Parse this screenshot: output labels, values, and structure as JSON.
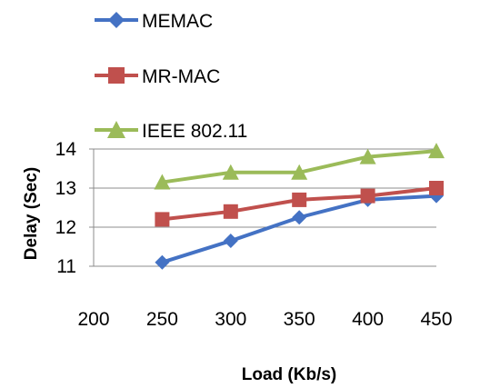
{
  "chart_data": {
    "type": "line",
    "xlabel": "Load (Kb/s)",
    "ylabel": "Delay (Sec)",
    "x_ticks": [
      200,
      250,
      300,
      350,
      400,
      450
    ],
    "y_ticks": [
      11,
      12,
      13,
      14
    ],
    "xlim": [
      200,
      450
    ],
    "ylim": [
      11,
      14
    ],
    "grid": true,
    "legend_position": "top-left",
    "series": [
      {
        "name": "MEMAC",
        "color": "#4472C4",
        "marker": "diamond",
        "x": [
          250,
          300,
          350,
          400,
          450
        ],
        "y": [
          11.1,
          11.65,
          12.25,
          12.7,
          12.8
        ]
      },
      {
        "name": "MR-MAC",
        "color": "#C0504D",
        "marker": "square",
        "x": [
          250,
          300,
          350,
          400,
          450
        ],
        "y": [
          12.2,
          12.4,
          12.7,
          12.8,
          13.0
        ]
      },
      {
        "name": "IEEE 802.11",
        "color": "#9BBB59",
        "marker": "triangle",
        "x": [
          250,
          300,
          350,
          400,
          450
        ],
        "y": [
          13.15,
          13.4,
          13.4,
          13.8,
          13.95
        ]
      }
    ]
  }
}
